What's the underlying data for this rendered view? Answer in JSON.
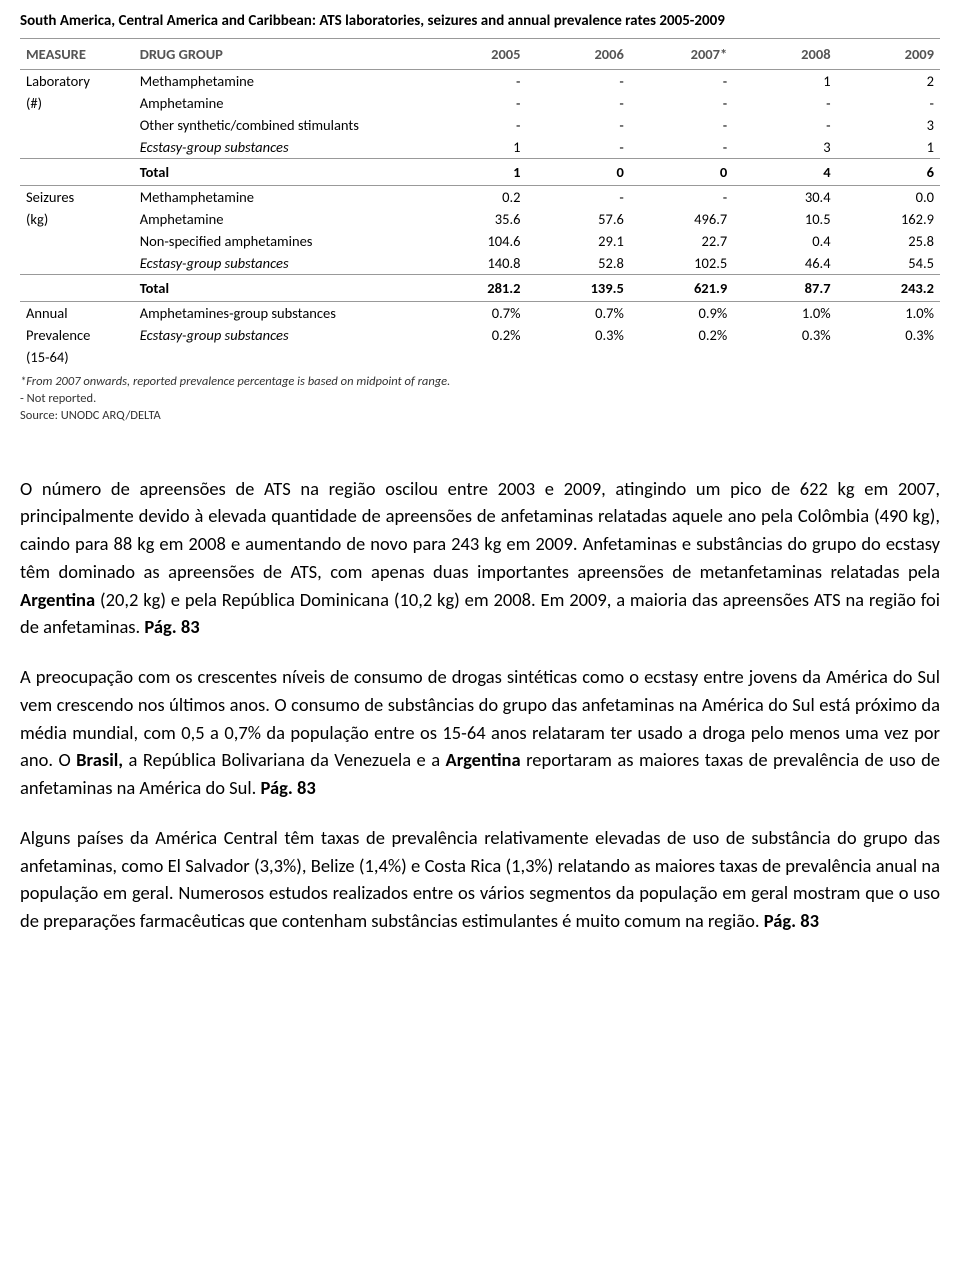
{
  "table": {
    "title": "South America, Central America and Caribbean: ATS laboratories, seizures and annual prevalence rates 2005-2009",
    "headers": {
      "measure": "MEASURE",
      "drug": "DRUG GROUP",
      "years": [
        "2005",
        "2006",
        "2007*",
        "2008",
        "2009"
      ]
    },
    "sections": [
      {
        "measure_lines": [
          "Laboratory",
          "(#)"
        ],
        "rows": [
          {
            "label": "Methamphetamine",
            "italic": false,
            "values": [
              "-",
              "-",
              "-",
              "1",
              "2"
            ]
          },
          {
            "label": "Amphetamine",
            "italic": false,
            "values": [
              "-",
              "-",
              "-",
              "-",
              "-"
            ]
          },
          {
            "label": "Other synthetic/combined stimulants",
            "italic": false,
            "values": [
              "-",
              "-",
              "-",
              "-",
              "3"
            ]
          },
          {
            "label": "Ecstasy-group substances",
            "italic": true,
            "values": [
              "1",
              "-",
              "-",
              "3",
              "1"
            ]
          }
        ],
        "total": {
          "label": "Total",
          "values": [
            "1",
            "0",
            "0",
            "4",
            "6"
          ]
        }
      },
      {
        "measure_lines": [
          "Seizures",
          "(kg)"
        ],
        "rows": [
          {
            "label": "Methamphetamine",
            "italic": false,
            "values": [
              "0.2",
              "-",
              "-",
              "30.4",
              "0.0"
            ]
          },
          {
            "label": "Amphetamine",
            "italic": false,
            "values": [
              "35.6",
              "57.6",
              "496.7",
              "10.5",
              "162.9"
            ]
          },
          {
            "label": "Non-specified amphetamines",
            "italic": false,
            "values": [
              "104.6",
              "29.1",
              "22.7",
              "0.4",
              "25.8"
            ]
          },
          {
            "label": "Ecstasy-group substances",
            "italic": true,
            "values": [
              "140.8",
              "52.8",
              "102.5",
              "46.4",
              "54.5"
            ]
          }
        ],
        "total": {
          "label": "Total",
          "values": [
            "281.2",
            "139.5",
            "621.9",
            "87.7",
            "243.2"
          ]
        }
      },
      {
        "measure_lines": [
          "Annual",
          "Prevalence",
          "(15-64)"
        ],
        "rows": [
          {
            "label": "Amphetamines-group substances",
            "italic": false,
            "values": [
              "0.7%",
              "0.7%",
              "0.9%",
              "1.0%",
              "1.0%"
            ]
          },
          {
            "label": "Ecstasy-group substances",
            "italic": true,
            "values": [
              "0.2%",
              "0.3%",
              "0.2%",
              "0.3%",
              "0.3%"
            ]
          }
        ],
        "total": null
      }
    ],
    "footnotes": [
      {
        "text": "*From 2007 onwards, reported prevalence percentage is based on midpoint of range.",
        "italic": true
      },
      {
        "text": "- Not reported.",
        "italic": false
      },
      {
        "text": "Source: UNODC ARQ/DELTA",
        "italic": false
      }
    ]
  },
  "paragraphs": [
    {
      "runs": [
        {
          "text": "O número de apreensões de ATS na região oscilou entre 2003 e 2009, atingindo um pico de 622 kg em 2007, principalmente devido à elevada quantidade de apreensões de anfetaminas relatadas aquele ano pela Colômbia (490 kg), caindo para 88 kg em 2008 e aumentando de novo para 243 kg em 2009. Anfetaminas e substâncias do grupo do ecstasy têm dominado as apreensões de ATS, com apenas duas importantes apreensões de metanfetaminas relatadas pela ",
          "bold": false
        },
        {
          "text": "Argentina",
          "bold": true
        },
        {
          "text": " (20,2 kg) e pela República Dominicana (10,2 kg) em 2008. Em 2009, a maioria das apreensões ATS na região foi de anfetaminas. ",
          "bold": false
        },
        {
          "text": "Pág. 83",
          "bold": true
        }
      ]
    },
    {
      "runs": [
        {
          "text": "A preocupação com os crescentes níveis de consumo de drogas sintéticas como o ecstasy entre jovens da América do Sul vem crescendo nos últimos anos. O consumo de substâncias do grupo das anfetaminas na América do Sul está próximo da média mundial, com 0,5 a 0,7% da população entre os 15-64 anos relataram ter usado a droga pelo menos uma vez por ano. O ",
          "bold": false
        },
        {
          "text": "Brasil,",
          "bold": true
        },
        {
          "text": " a República Bolivariana da Venezuela e a ",
          "bold": false
        },
        {
          "text": "Argentina",
          "bold": true
        },
        {
          "text": " reportaram as maiores taxas de prevalência de uso de anfetaminas na América do Sul. ",
          "bold": false
        },
        {
          "text": "Pág. 83",
          "bold": true
        }
      ]
    },
    {
      "runs": [
        {
          "text": "Alguns países da América Central têm taxas de prevalência relativamente elevadas de uso de substância do grupo das anfetaminas, como El Salvador (3,3%), Belize (1,4%) e Costa Rica (1,3%) relatando as maiores taxas de prevalência anual na população em geral. Numerosos estudos realizados entre os vários segmentos da população em geral mostram que o uso de preparações farmacêuticas que contenham substâncias estimulantes é muito comum na região. ",
          "bold": false
        },
        {
          "text": "Pág. 83",
          "bold": true
        }
      ]
    }
  ]
}
